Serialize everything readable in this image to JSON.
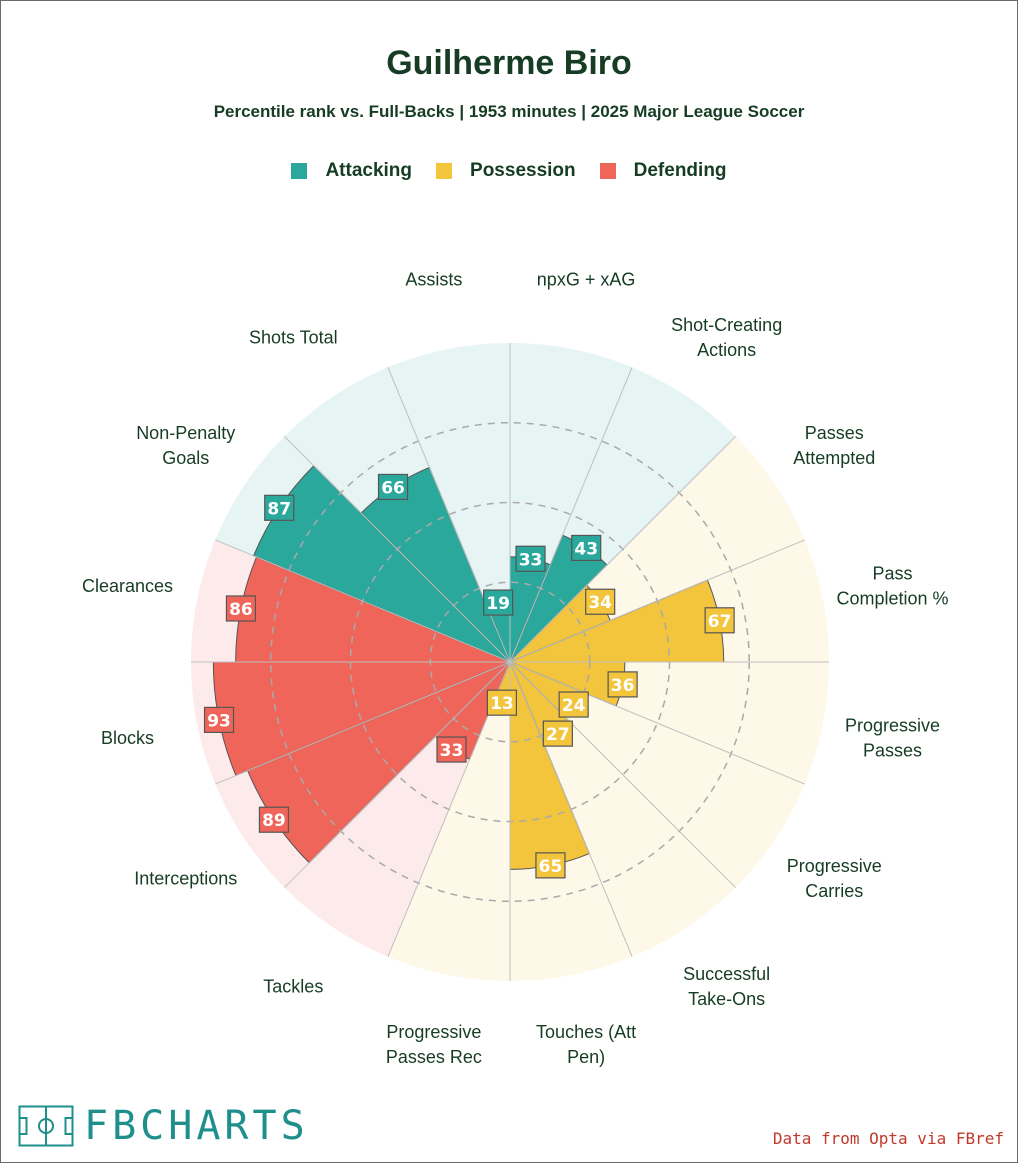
{
  "header": {
    "title": "Guilherme Biro",
    "subtitle": "Percentile rank vs. Full-Backs | 1953 minutes | 2025 Major League Soccer"
  },
  "legend": {
    "attacking": "Attacking",
    "possession": "Possession",
    "defending": "Defending"
  },
  "colors": {
    "attacking": "#2ba89c",
    "possession": "#f2c53d",
    "defending": "#f0655a",
    "attacking_bg": "#e6f4f4",
    "possession_bg": "#fdf8e8",
    "defending_bg": "#fdebec",
    "text": "#163c24",
    "grid": "#bfbfbf"
  },
  "chart_data": {
    "type": "polar-bar",
    "title": "Guilherme Biro",
    "rmax": 100,
    "rings": [
      25,
      50,
      75
    ],
    "metrics": [
      {
        "label": "npxG + xAG",
        "value": 33,
        "group": "attacking"
      },
      {
        "label": "Shot-Creating Actions",
        "value": 43,
        "group": "attacking"
      },
      {
        "label": "Passes Attempted",
        "value": 34,
        "group": "possession"
      },
      {
        "label": "Pass Completion %",
        "value": 67,
        "group": "possession"
      },
      {
        "label": "Progressive Passes",
        "value": 36,
        "group": "possession"
      },
      {
        "label": "Progressive Carries",
        "value": 24,
        "group": "possession"
      },
      {
        "label": "Successful Take-Ons",
        "value": 27,
        "group": "possession"
      },
      {
        "label": "Touches (Att Pen)",
        "value": 65,
        "group": "possession"
      },
      {
        "label": "Progressive Passes Rec",
        "value": 13,
        "group": "possession"
      },
      {
        "label": "Tackles",
        "value": 33,
        "group": "defending"
      },
      {
        "label": "Interceptions",
        "value": 89,
        "group": "defending"
      },
      {
        "label": "Blocks",
        "value": 93,
        "group": "defending"
      },
      {
        "label": "Clearances",
        "value": 86,
        "group": "defending"
      },
      {
        "label": "Non-Penalty Goals",
        "value": 87,
        "group": "attacking"
      },
      {
        "label": "Shots Total",
        "value": 66,
        "group": "attacking"
      },
      {
        "label": "Assists",
        "value": 19,
        "group": "attacking"
      }
    ]
  },
  "footer": {
    "logo_text": "FBCHARTS",
    "credit": "Data from Opta via FBref"
  }
}
